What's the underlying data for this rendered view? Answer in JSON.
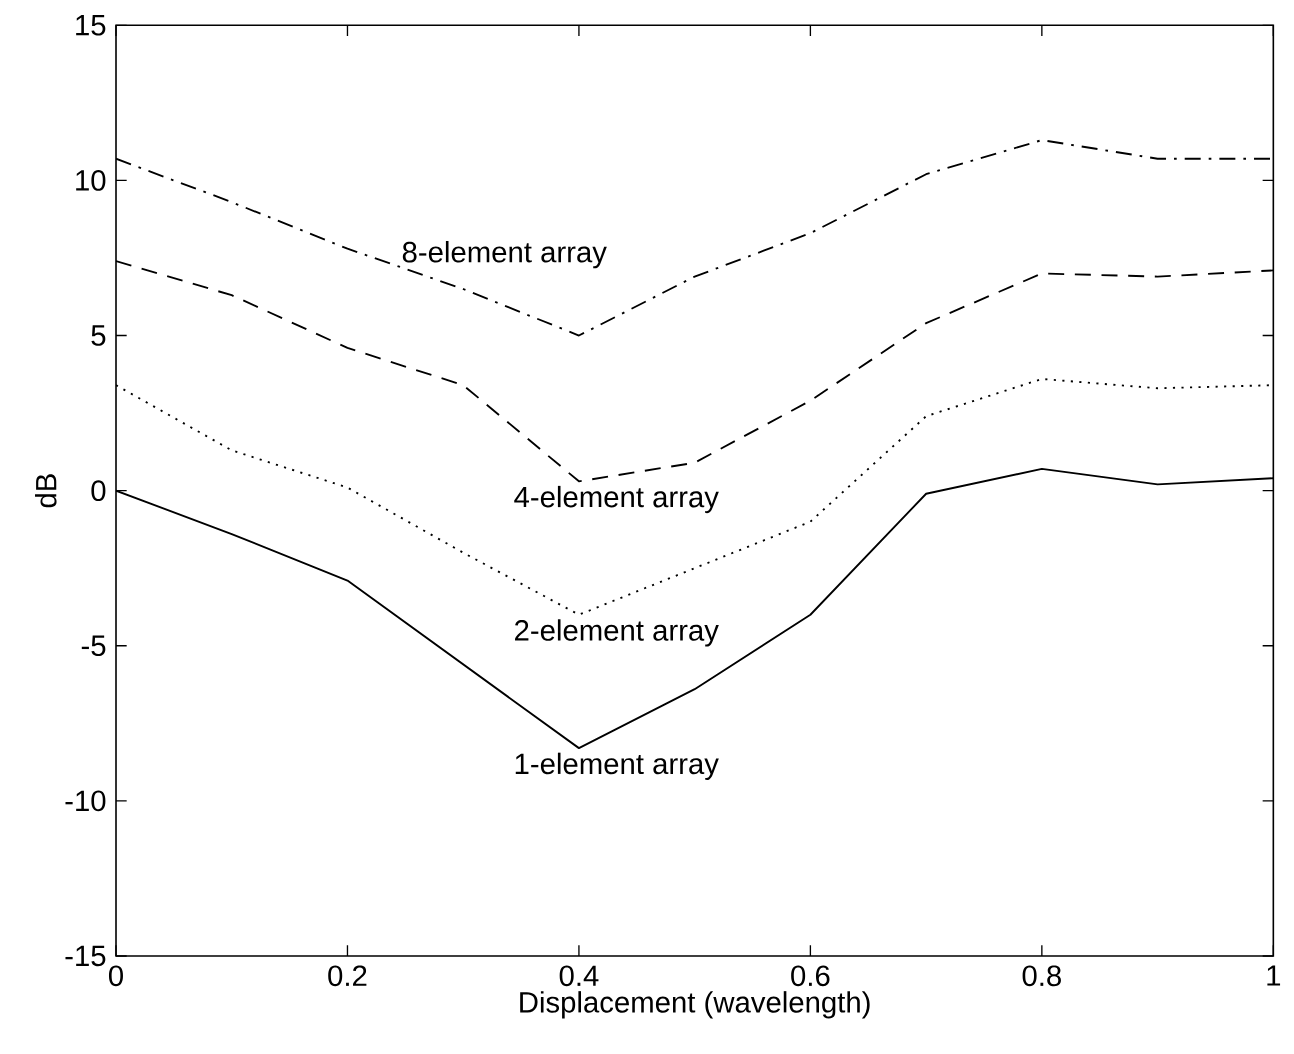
{
  "chart_data": {
    "type": "line",
    "xlabel": "Displacement  (wavelength)",
    "ylabel": "dB",
    "x": [
      0,
      0.1,
      0.2,
      0.3,
      0.4,
      0.5,
      0.6,
      0.7,
      0.8,
      0.9,
      1.0
    ],
    "series": [
      {
        "name": "1-element array",
        "color": "#000000",
        "line_style": "solid",
        "values": [
          0,
          -1.4,
          -2.9,
          -5.6,
          -8.3,
          -6.4,
          -4.0,
          -0.1,
          0.7,
          0.2,
          0.4
        ]
      },
      {
        "name": "2-element array",
        "color": "#000000",
        "line_style": "dotted",
        "values": [
          3.4,
          1.3,
          0.1,
          -2.0,
          -4.0,
          -2.5,
          -1.0,
          2.4,
          3.6,
          3.3,
          3.4
        ]
      },
      {
        "name": "4-element array",
        "color": "#000000",
        "line_style": "dashed",
        "values": [
          7.4,
          6.3,
          4.6,
          3.4,
          0.3,
          0.9,
          2.9,
          5.4,
          7.0,
          6.9,
          7.1
        ]
      },
      {
        "name": "8-element array",
        "color": "#000000",
        "line_style": "dashdot",
        "values": [
          10.7,
          9.3,
          7.8,
          6.5,
          5.0,
          6.9,
          8.3,
          10.2,
          11.3,
          10.7,
          10.7
        ]
      }
    ],
    "xlim": [
      0,
      1
    ],
    "ylim": [
      -15,
      15
    ],
    "xticks": [
      0,
      0.2,
      0.4,
      0.6,
      0.8,
      1
    ],
    "yticks": [
      -15,
      -10,
      -5,
      0,
      5,
      10,
      15
    ],
    "grid": false,
    "marker": "none"
  }
}
